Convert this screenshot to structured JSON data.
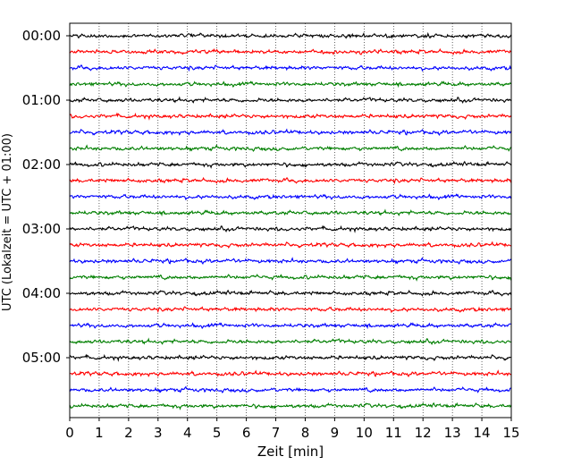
{
  "chart_data": {
    "type": "line",
    "title": "",
    "xlabel": "Zeit  [min]",
    "ylabel": "UTC (Lokalzeit = UTC + 01:00)",
    "xlim": [
      0,
      15
    ],
    "x_ticks": [
      "0",
      "1",
      "2",
      "3",
      "4",
      "5",
      "6",
      "7",
      "8",
      "9",
      "10",
      "11",
      "12",
      "13",
      "14",
      "15"
    ],
    "y_ticks": [
      "00:00",
      "01:00",
      "02:00",
      "03:00",
      "04:00",
      "05:00"
    ],
    "grid": "vertical dotted lines at each minute",
    "trace_interval_minutes": 15,
    "trace_count": 24,
    "trace_colors": [
      "#000000",
      "#ff0000",
      "#0000ff",
      "#007f00"
    ],
    "series": [
      {
        "start": "00:00",
        "color": "#000000"
      },
      {
        "start": "00:15",
        "color": "#ff0000"
      },
      {
        "start": "00:30",
        "color": "#0000ff"
      },
      {
        "start": "00:45",
        "color": "#007f00"
      },
      {
        "start": "01:00",
        "color": "#000000"
      },
      {
        "start": "01:15",
        "color": "#ff0000"
      },
      {
        "start": "01:30",
        "color": "#0000ff"
      },
      {
        "start": "01:45",
        "color": "#007f00"
      },
      {
        "start": "02:00",
        "color": "#000000"
      },
      {
        "start": "02:15",
        "color": "#ff0000"
      },
      {
        "start": "02:30",
        "color": "#0000ff"
      },
      {
        "start": "02:45",
        "color": "#007f00"
      },
      {
        "start": "03:00",
        "color": "#000000"
      },
      {
        "start": "03:15",
        "color": "#ff0000"
      },
      {
        "start": "03:30",
        "color": "#0000ff"
      },
      {
        "start": "03:45",
        "color": "#007f00"
      },
      {
        "start": "04:00",
        "color": "#000000"
      },
      {
        "start": "04:15",
        "color": "#ff0000"
      },
      {
        "start": "04:30",
        "color": "#0000ff"
      },
      {
        "start": "04:45",
        "color": "#007f00"
      },
      {
        "start": "05:00",
        "color": "#000000"
      },
      {
        "start": "05:15",
        "color": "#ff0000"
      },
      {
        "start": "05:30",
        "color": "#0000ff"
      },
      {
        "start": "05:45",
        "color": "#007f00"
      }
    ]
  }
}
